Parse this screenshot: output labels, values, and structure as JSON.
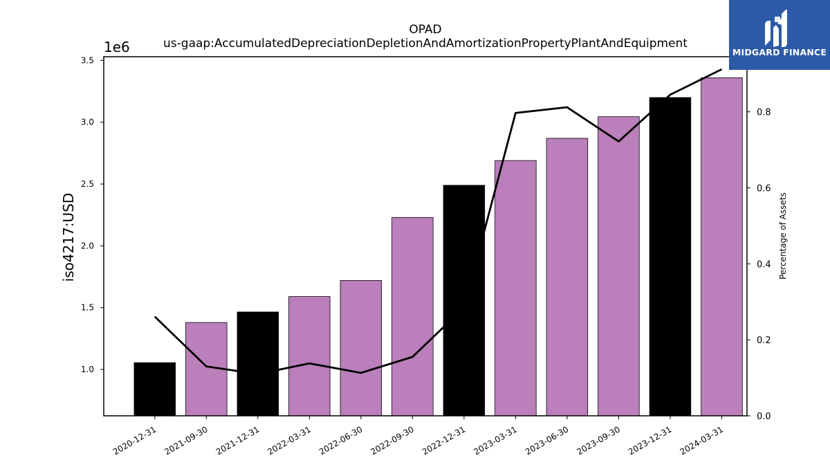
{
  "logo": {
    "text": "MIDGARD FINANCE",
    "bg_color": "#2c5aa6",
    "text_color": "#ffffff"
  },
  "chart_data": {
    "type": "bar",
    "title": "OPAD",
    "subtitle": "us-gaap:AccumulatedDepreciationDepletionAndAmortizationPropertyPlantAndEquipment",
    "ylabel": "iso4217:USD",
    "ylabel_right": "Percentage of Assets",
    "y_multiplier_label": "1e6",
    "categories": [
      "2020-12-31",
      "2021-09-30",
      "2021-12-31",
      "2022-03-31",
      "2022-06-30",
      "2022-09-30",
      "2022-12-31",
      "2023-03-31",
      "2023-06-30",
      "2023-09-30",
      "2023-12-31",
      "2024-03-31"
    ],
    "values": [
      1055000,
      1380000,
      1465000,
      1590000,
      1720000,
      2230000,
      2490000,
      2690000,
      2870000,
      3045000,
      3200000,
      3360000
    ],
    "bar_colors": [
      "#000000",
      "#bb7fbb",
      "#000000",
      "#bb7fbb",
      "#bb7fbb",
      "#bb7fbb",
      "#000000",
      "#bb7fbb",
      "#bb7fbb",
      "#bb7fbb",
      "#000000",
      "#bb7fbb"
    ],
    "ylim": [
      625000,
      3530000
    ],
    "yticks": [
      1000000,
      1500000,
      2000000,
      2500000,
      3000000,
      3500000
    ],
    "ytick_labels": [
      "1.0",
      "1.5",
      "2.0",
      "2.5",
      "3.0",
      "3.5"
    ],
    "series": [
      {
        "values": [
          0.261,
          0.13,
          0.11,
          0.138,
          0.113,
          0.155,
          0.285,
          0.797,
          0.812,
          0.722,
          0.845,
          0.912
        ]
      }
    ],
    "ylim_right": [
      0.0,
      0.945
    ],
    "yticks_right": [
      0.0,
      0.2,
      0.4,
      0.6,
      0.8
    ],
    "ytick_labels_right": [
      "0.0",
      "0.2",
      "0.4",
      "0.6",
      "0.8"
    ],
    "line_color": "#000000",
    "grid": false
  }
}
